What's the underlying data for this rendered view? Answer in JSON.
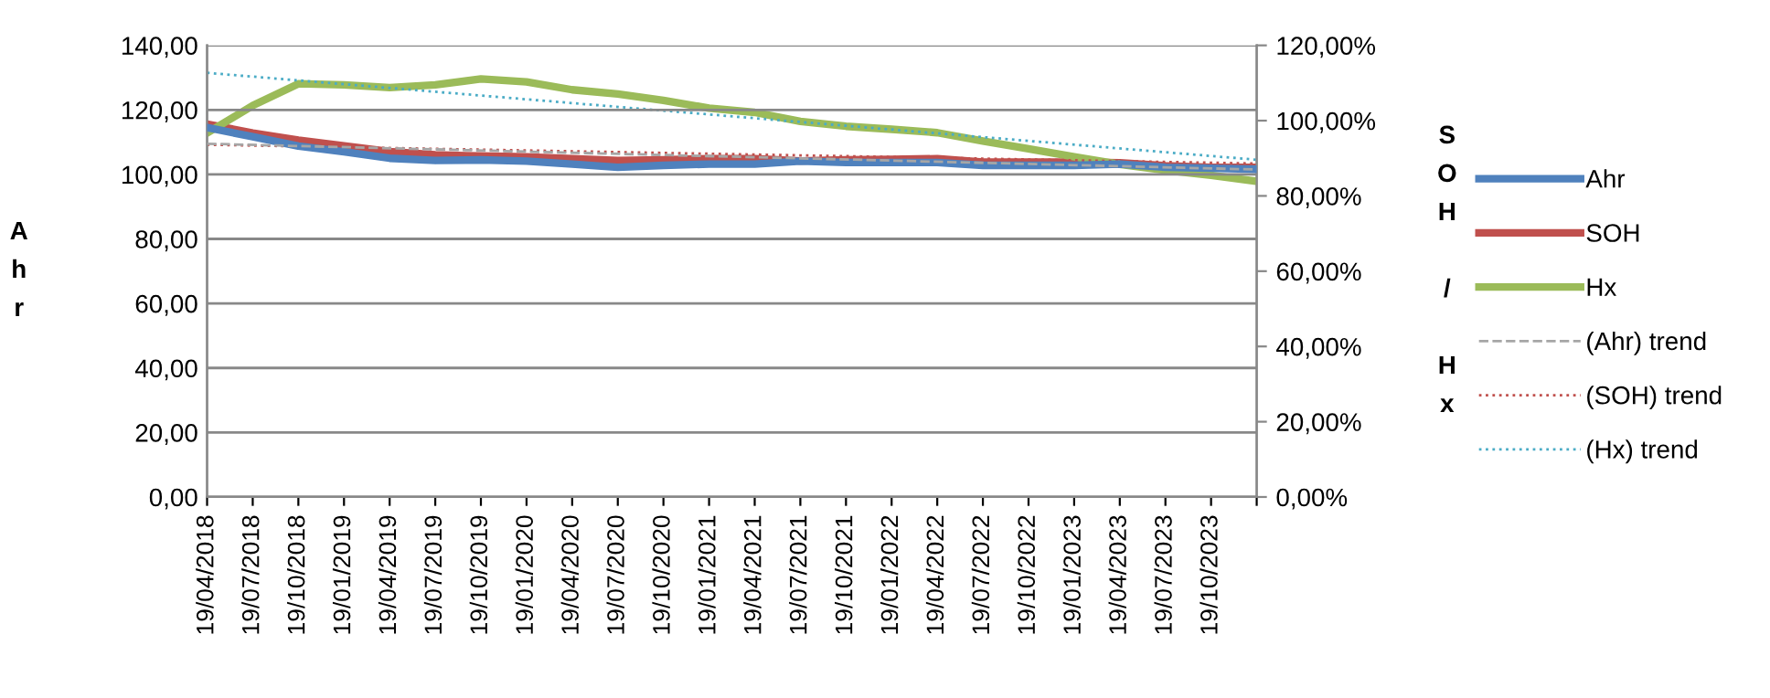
{
  "chart_data": {
    "type": "line",
    "ylabel": "Ahr",
    "y2label": "SOH / Hx",
    "categories": [
      "19/04/2018",
      "19/07/2018",
      "19/10/2018",
      "19/01/2019",
      "19/04/2019",
      "19/07/2019",
      "19/10/2019",
      "19/01/2020",
      "19/04/2020",
      "19/07/2020",
      "19/10/2020",
      "19/01/2021",
      "19/04/2021",
      "19/07/2021",
      "19/10/2021",
      "19/01/2022",
      "19/04/2022",
      "19/07/2022",
      "19/10/2022",
      "19/01/2023",
      "19/04/2023",
      "19/07/2023",
      "19/10/2023",
      null
    ],
    "series": [
      {
        "name": "Ahr",
        "color": "#4f81bd",
        "values": [
          114.5,
          111.7,
          108.8,
          107,
          105,
          104.3,
          104.5,
          104.1,
          103.2,
          102.2,
          102.8,
          103.2,
          103.2,
          104.1,
          103.7,
          103.7,
          103.7,
          102.8,
          102.8,
          102.8,
          103.2,
          102.2,
          101.9,
          101.6
        ]
      },
      {
        "name": "SOH",
        "color": "#c0504d",
        "axis": "y2",
        "values": [
          99.1,
          96.7,
          94.8,
          93.3,
          91.8,
          90.9,
          90.6,
          90.4,
          89.9,
          89.4,
          89.6,
          89.9,
          89.9,
          89.3,
          89.6,
          89.7,
          89.9,
          89,
          89,
          89,
          88.8,
          88,
          87.6,
          87.6
        ]
      },
      {
        "name": "Hx",
        "color": "#9bbb59",
        "axis": "y2",
        "values": [
          96.7,
          104,
          109.8,
          109.5,
          108.8,
          109.5,
          111.1,
          110.3,
          108.2,
          107.1,
          105.4,
          103.3,
          102.2,
          99.8,
          98.5,
          97.7,
          96.8,
          94.6,
          92.5,
          90.4,
          88.4,
          86.8,
          85.5,
          83.9
        ]
      },
      {
        "name": "(Ahr) trend",
        "color": "#a6a6a6",
        "line_style": "dashed",
        "values": [
          109.5,
          null,
          null,
          null,
          null,
          null,
          null,
          null,
          null,
          null,
          null,
          null,
          null,
          null,
          null,
          null,
          null,
          null,
          null,
          null,
          null,
          null,
          null,
          101.5
        ]
      },
      {
        "name": "(SOH) trend",
        "color": "#c0504d",
        "axis": "y2",
        "line_style": "dotted",
        "values": [
          93.6,
          null,
          null,
          null,
          null,
          null,
          null,
          null,
          null,
          null,
          null,
          null,
          null,
          null,
          null,
          null,
          null,
          null,
          null,
          null,
          null,
          null,
          null,
          88.6
        ]
      },
      {
        "name": "(Hx) trend",
        "color": "#4bacc6",
        "axis": "y2",
        "line_style": "dotted",
        "values": [
          112.7,
          null,
          null,
          null,
          null,
          null,
          null,
          null,
          null,
          null,
          null,
          null,
          null,
          null,
          null,
          null,
          null,
          null,
          null,
          null,
          null,
          null,
          null,
          89.6
        ]
      }
    ],
    "ylim": [
      0,
      140
    ],
    "yticks": [
      {
        "value": 0,
        "label": "0,00"
      },
      {
        "value": 20,
        "label": "20,00"
      },
      {
        "value": 40,
        "label": "40,00"
      },
      {
        "value": 60,
        "label": "60,00"
      },
      {
        "value": 80,
        "label": "80,00"
      },
      {
        "value": 100,
        "label": "100,00"
      },
      {
        "value": 120,
        "label": "120,00"
      },
      {
        "value": 140,
        "label": "140,00"
      }
    ],
    "y2lim": [
      0,
      120
    ],
    "y2ticks": [
      {
        "value": 0,
        "label": "0,00%"
      },
      {
        "value": 20,
        "label": "20,00%"
      },
      {
        "value": 40,
        "label": "40,00%"
      },
      {
        "value": 60,
        "label": "60,00%"
      },
      {
        "value": 80,
        "label": "80,00%"
      },
      {
        "value": 100,
        "label": "100,00%"
      },
      {
        "value": 120,
        "label": "120,00%"
      }
    ],
    "grid": "y",
    "legend": "right",
    "marker": "none"
  }
}
